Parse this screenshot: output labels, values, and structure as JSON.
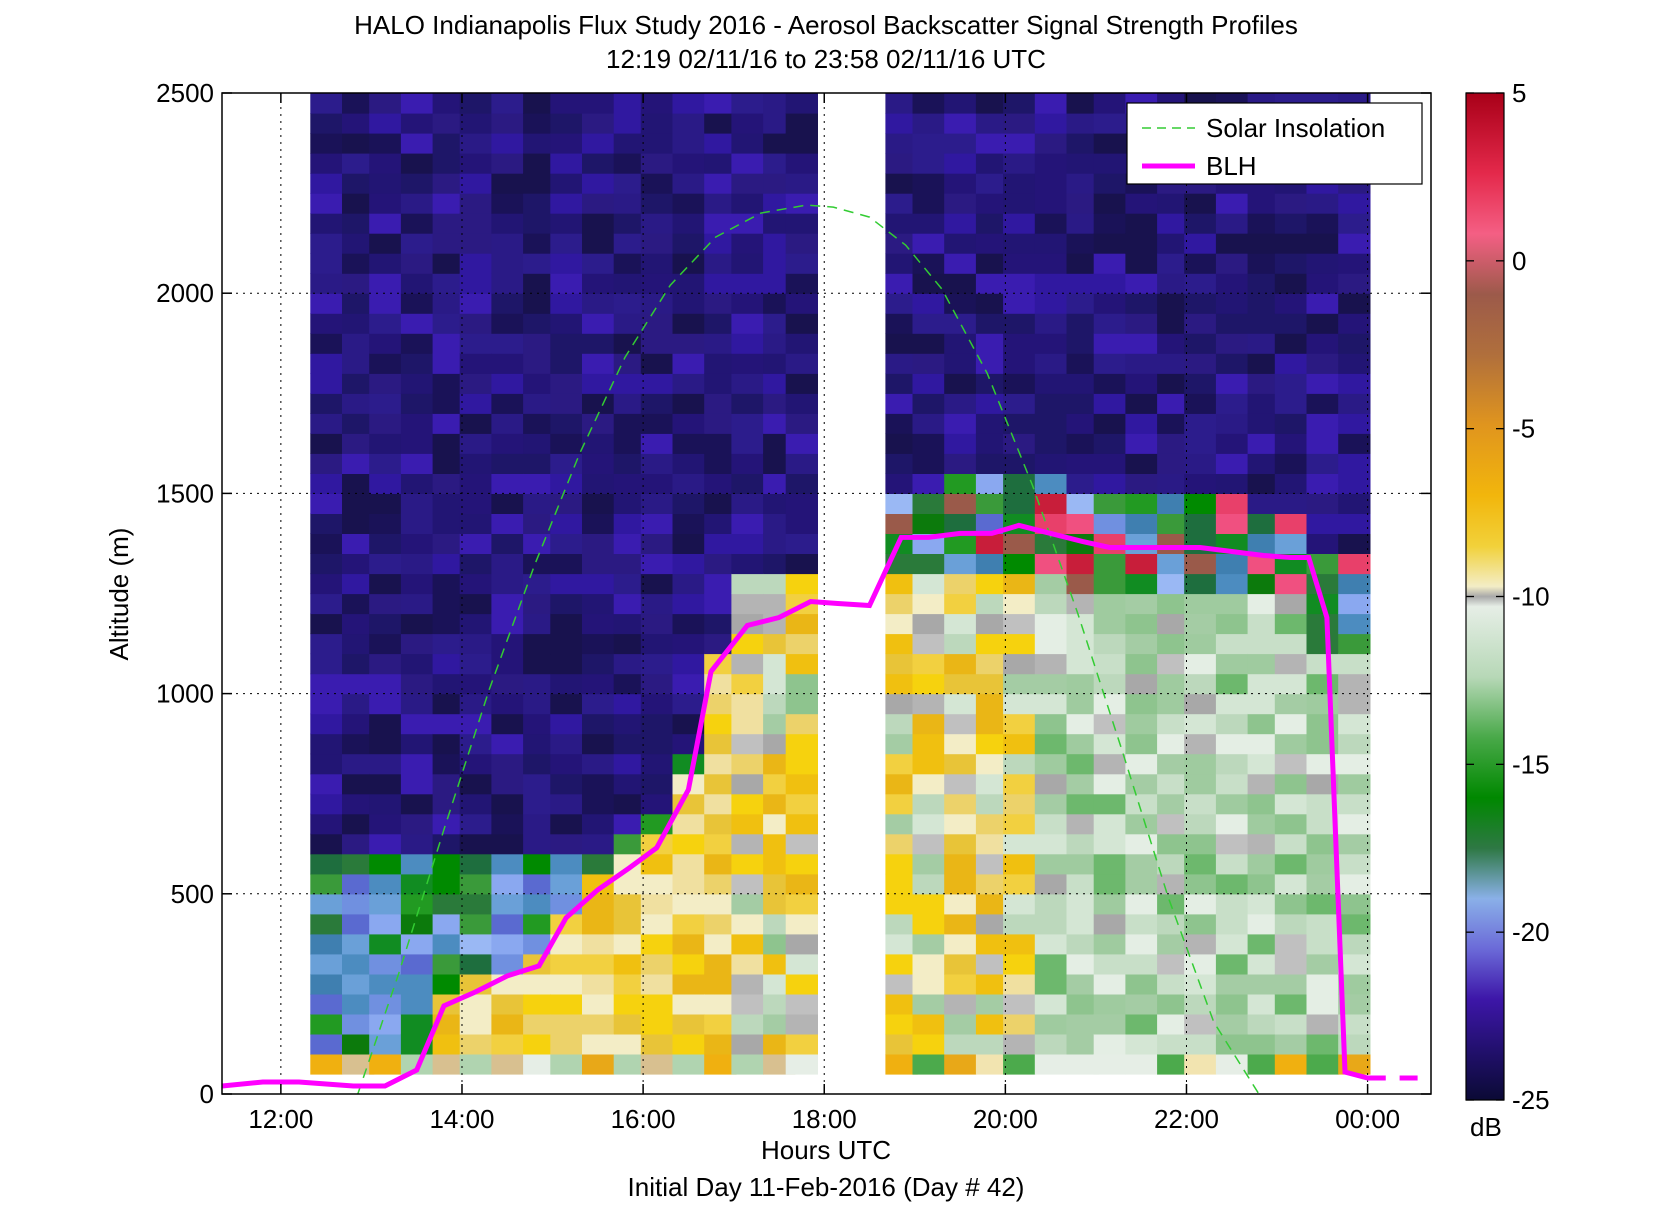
{
  "figure": {
    "title_line1": "HALO Indianapolis Flux Study 2016 - Aerosol Backscatter Signal Strength Profiles",
    "title_line2": "12:19 02/11/16 to 23:58 02/11/16  UTC",
    "xlabel": "Hours UTC",
    "xlabel2": "Initial Day 11-Feb-2016 (Day # 42)",
    "ylabel": "Altitude (m)",
    "colorbar_unit": "dB"
  },
  "chart_data": {
    "type": "heatmap",
    "x_unit": "hours UTC",
    "xlim": [
      11.35,
      24.7
    ],
    "ylim": [
      0,
      2500
    ],
    "x_ticks": [
      12,
      14,
      16,
      18,
      20,
      22,
      24
    ],
    "x_tick_labels": [
      "12:00",
      "14:00",
      "16:00",
      "18:00",
      "20:00",
      "22:00",
      "00:00"
    ],
    "y_ticks": [
      0,
      500,
      1000,
      1500,
      2000,
      2500
    ],
    "y_tick_labels": [
      "0",
      "500",
      "1000",
      "1500",
      "2000",
      "2500"
    ],
    "grid": true,
    "legend_position": "top-right",
    "color_scale": {
      "min": -25,
      "max": 5,
      "ticks": [
        5,
        0,
        -5,
        -10,
        -15,
        -20,
        -25
      ],
      "tick_labels": [
        "5",
        "0",
        "-5",
        "-10",
        "-15",
        "-20",
        "-25"
      ],
      "unit": "dB"
    },
    "data_segments": [
      {
        "x_start": 12.35,
        "x_end": 17.85
      },
      {
        "x_start": 18.65,
        "x_end": 24.0
      }
    ],
    "gate_height_m": 50,
    "profile_columns": [
      {
        "x": 12.5,
        "ground_m": 50,
        "band": "yellow"
      },
      {
        "x": 12.85,
        "ground_m": 50,
        "band": "yellow"
      },
      {
        "x": 13.15,
        "ground_m": 50,
        "band": "yellow"
      },
      {
        "x": 13.5,
        "ground_m": 50,
        "band": "yellow"
      },
      {
        "x": 13.85,
        "ground_m": 50,
        "band": "yellow"
      },
      {
        "x": 14.15,
        "ground_m": 50,
        "band": "yellow"
      },
      {
        "x": 14.5,
        "ground_m": 50,
        "band": "yellow"
      },
      {
        "x": 14.85,
        "ground_m": 50,
        "band": "yellow"
      },
      {
        "x": 15.15,
        "ground_m": 50,
        "band": "yellow"
      },
      {
        "x": 15.5,
        "ground_m": 50,
        "band": "yellow"
      },
      {
        "x": 15.85,
        "ground_m": 50,
        "band": "yellow"
      },
      {
        "x": 16.15,
        "ground_m": 50,
        "band": "yellow"
      },
      {
        "x": 16.5,
        "ground_m": 50,
        "band": "yellow"
      },
      {
        "x": 16.85,
        "ground_m": 50,
        "band": "yellow"
      },
      {
        "x": 17.15,
        "ground_m": 50,
        "band": "yellow"
      },
      {
        "x": 17.5,
        "ground_m": 50,
        "band": "yellow"
      },
      {
        "x": 17.75,
        "ground_m": 50,
        "band": "yellow"
      },
      {
        "x": 18.85,
        "ground_m": 50,
        "band": "yellow"
      },
      {
        "x": 19.15,
        "ground_m": 50,
        "band": "yellow"
      },
      {
        "x": 19.5,
        "ground_m": 50,
        "band": "yellow"
      },
      {
        "x": 19.85,
        "ground_m": 50,
        "band": "yellow"
      },
      {
        "x": 20.15,
        "ground_m": 50,
        "band": "yellow"
      },
      {
        "x": 20.5,
        "ground_m": 50,
        "band": "yellow"
      },
      {
        "x": 20.85,
        "ground_m": 50,
        "band": "yellow"
      },
      {
        "x": 21.15,
        "ground_m": 50,
        "band": "yellow"
      },
      {
        "x": 21.5,
        "ground_m": 50,
        "band": "yellow"
      },
      {
        "x": 21.85,
        "ground_m": 50,
        "band": "yellow"
      },
      {
        "x": 22.15,
        "ground_m": 50,
        "band": "yellow"
      },
      {
        "x": 22.5,
        "ground_m": 50,
        "band": "yellow"
      },
      {
        "x": 22.85,
        "ground_m": 50,
        "band": "yellow"
      },
      {
        "x": 23.15,
        "ground_m": 50,
        "band": "yellow"
      },
      {
        "x": 23.5,
        "ground_m": 50,
        "band": "yellow"
      },
      {
        "x": 23.85,
        "ground_m": 50,
        "band": "yellow"
      }
    ],
    "series": [
      {
        "name": "Solar Insolation",
        "style": "dashed",
        "color": "#33cc33",
        "x": [
          12.85,
          13.3,
          13.8,
          14.3,
          14.8,
          15.3,
          15.8,
          16.3,
          16.8,
          17.3,
          17.8,
          18.1,
          18.5,
          18.9,
          19.3,
          19.8,
          20.3,
          20.8,
          21.3,
          21.8,
          22.3,
          22.8,
          23.15
        ],
        "y": [
          0,
          300,
          660,
          1010,
          1320,
          1600,
          1840,
          2020,
          2140,
          2200,
          2220,
          2215,
          2190,
          2120,
          2010,
          1800,
          1520,
          1200,
          850,
          490,
          180,
          0,
          -60
        ]
      },
      {
        "name": "BLH",
        "style": "solid",
        "color": "#ff00ff",
        "x": [
          11.35,
          11.8,
          12.2,
          12.5,
          12.8,
          13.15,
          13.5,
          13.8,
          14.15,
          14.5,
          14.85,
          15.15,
          15.5,
          15.85,
          16.15,
          16.5,
          16.75,
          17.15,
          17.5,
          17.85,
          18.15,
          18.5,
          18.85,
          19.15,
          19.5,
          19.85,
          20.15,
          20.5,
          20.85,
          21.15,
          21.5,
          21.85,
          22.15,
          22.5,
          22.85,
          23.15,
          23.35,
          23.55,
          23.75,
          24.0,
          24.2
        ],
        "y": [
          20,
          30,
          30,
          25,
          20,
          20,
          60,
          220,
          255,
          295,
          320,
          440,
          510,
          565,
          615,
          760,
          1055,
          1170,
          1190,
          1230,
          1225,
          1220,
          1390,
          1390,
          1400,
          1400,
          1420,
          1400,
          1380,
          1365,
          1365,
          1365,
          1365,
          1355,
          1345,
          1340,
          1340,
          1190,
          55,
          40,
          40
        ]
      },
      {
        "name": "BLH_tail",
        "style": "dashed",
        "color": "#ff00ff",
        "x": [
          24.0,
          24.7
        ],
        "y": [
          40,
          40
        ]
      }
    ]
  }
}
